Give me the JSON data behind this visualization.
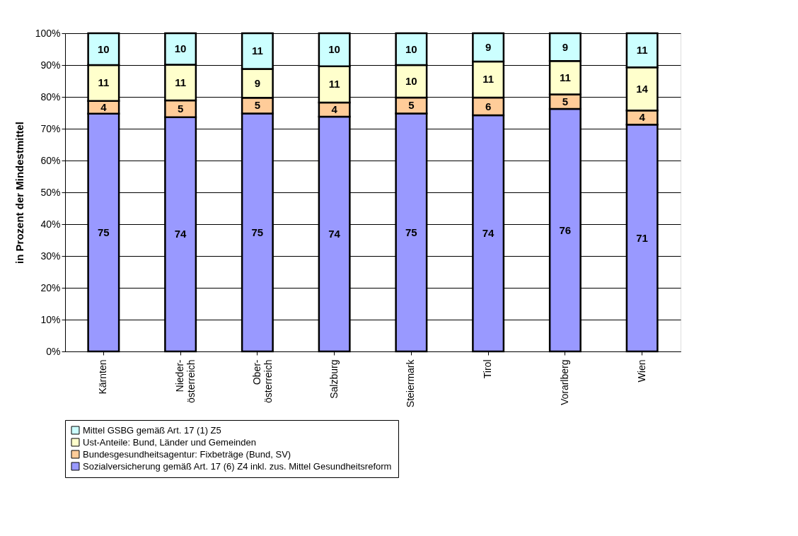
{
  "chart_data": {
    "type": "bar",
    "stacked": true,
    "ylabel": "in Prozent der Mindestmittel",
    "categories": [
      "Kärnten",
      "Nieder-\nösterreich",
      "Ober-\nösterreich",
      "Salzburg",
      "Steiermark",
      "Tirol",
      "Vorarlberg",
      "Wien"
    ],
    "series": [
      {
        "name": "Sozialversicherung gemäß Art. 17 (6) Z4 inkl. zus. Mittel Gesundheitsreform",
        "color": "#9999ff",
        "values": [
          74.7,
          73.6,
          74.8,
          73.8,
          74.8,
          74.2,
          76.2,
          71.3
        ],
        "value_labels": [
          "75",
          "74",
          "75",
          "74",
          "75",
          "74",
          "76",
          "71"
        ]
      },
      {
        "name": "Bundesgesundheitsagentur: Fixbeträge (Bund, SV)",
        "color": "#ffcc99",
        "values": [
          4.0,
          5.3,
          4.9,
          4.4,
          5.0,
          5.6,
          4.6,
          4.4
        ],
        "value_labels": [
          "4",
          "5",
          "5",
          "4",
          "5",
          "6",
          "5",
          "4"
        ]
      },
      {
        "name": "Ust-Anteile: Bund, Länder und Gemeinden",
        "color": "#ffffcc",
        "values": [
          11.3,
          11.2,
          9.1,
          11.4,
          10.2,
          11.3,
          10.5,
          13.6
        ],
        "value_labels": [
          "11",
          "11",
          "9",
          "11",
          "10",
          "11",
          "11",
          "14"
        ]
      },
      {
        "name": "Mittel GSBG gemäß Art. 17 (1) Z5",
        "color": "#ccffff",
        "values": [
          10.0,
          9.9,
          11.2,
          10.4,
          10.0,
          8.9,
          8.7,
          10.7
        ],
        "value_labels": [
          "10",
          "10",
          "11",
          "10",
          "10",
          "9",
          "9",
          "11"
        ]
      }
    ],
    "ylim": [
      0,
      100
    ],
    "yticks": [
      {
        "value": 0,
        "label": "0%"
      },
      {
        "value": 10,
        "label": "10%"
      },
      {
        "value": 20,
        "label": "20%"
      },
      {
        "value": 30,
        "label": "30%"
      },
      {
        "value": 40,
        "label": "40%"
      },
      {
        "value": 50,
        "label": "50%"
      },
      {
        "value": 60,
        "label": "60%"
      },
      {
        "value": 70,
        "label": "70%"
      },
      {
        "value": 80,
        "label": "80%"
      },
      {
        "value": 90,
        "label": "90%"
      },
      {
        "value": 100,
        "label": "100%"
      }
    ],
    "grid": "y",
    "legend": "bottom"
  }
}
